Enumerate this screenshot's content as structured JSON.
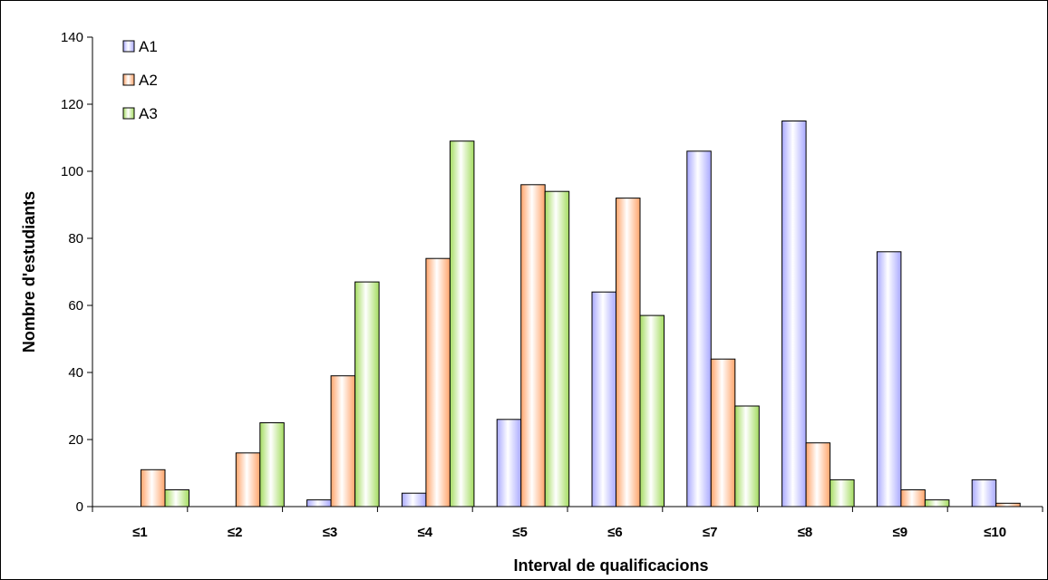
{
  "chart_data": {
    "type": "bar",
    "title": "",
    "xlabel": "Interval de qualificacions",
    "ylabel": "Nombre d'estudiants",
    "categories": [
      "≤1",
      "≤2",
      "≤3",
      "≤4",
      "≤5",
      "≤6",
      "≤7",
      "≤8",
      "≤9",
      "≤10"
    ],
    "series": [
      {
        "name": "A1",
        "color": "#a9a9ff",
        "values": [
          0,
          0,
          2,
          4,
          26,
          64,
          106,
          115,
          76,
          8
        ]
      },
      {
        "name": "A2",
        "color": "#ffa46a",
        "values": [
          11,
          16,
          39,
          74,
          96,
          92,
          44,
          19,
          5,
          1
        ]
      },
      {
        "name": "A3",
        "color": "#a4dc60",
        "values": [
          5,
          25,
          67,
          109,
          94,
          57,
          30,
          8,
          2,
          0
        ]
      }
    ],
    "ylim": [
      0,
      140
    ],
    "yticks": [
      0,
      20,
      40,
      60,
      80,
      100,
      120,
      140
    ],
    "grid": false,
    "legend_position": "top-left"
  }
}
